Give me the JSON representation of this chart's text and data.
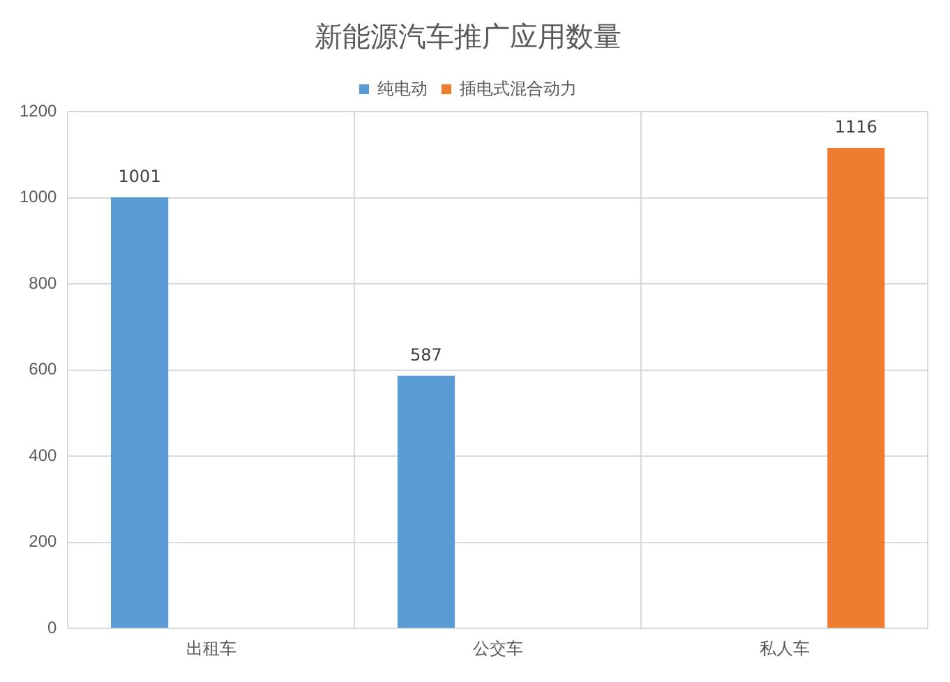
{
  "chart_data": {
    "type": "bar",
    "title": "新能源汽车推广应用数量",
    "categories": [
      "出租车",
      "公交车",
      "私人车"
    ],
    "series": [
      {
        "name": "纯电动",
        "color": "#5b9bd5",
        "values": [
          1001,
          587,
          null
        ]
      },
      {
        "name": "插电式混合动力",
        "color": "#ed7d31",
        "values": [
          null,
          null,
          1116
        ]
      }
    ],
    "ylim": [
      0,
      1200
    ],
    "yticks": [
      0,
      200,
      400,
      600,
      800,
      1000,
      1200
    ],
    "grid": true,
    "legend": "top",
    "data_labels": true
  }
}
